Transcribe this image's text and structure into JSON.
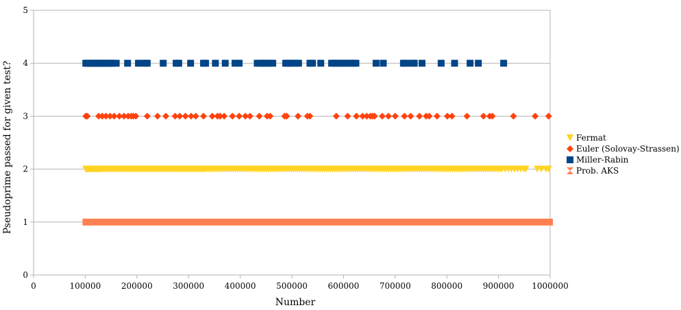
{
  "chart_data": {
    "type": "scatter",
    "title": "",
    "xlabel": "Number",
    "ylabel": "Pseudoprime passed for given test?",
    "xlim": [
      0,
      1000000
    ],
    "ylim": [
      0,
      5
    ],
    "x_ticks": [
      "0",
      "100000",
      "200000",
      "300000",
      "400000",
      "500000",
      "600000",
      "700000",
      "800000",
      "900000",
      "1000000"
    ],
    "y_ticks": [
      "0",
      "1",
      "2",
      "3",
      "4",
      "5"
    ],
    "grid": "horizontal",
    "legend_position": "right",
    "series": [
      {
        "name": "Fermat",
        "marker": "triangle-down",
        "color": "#FFD320",
        "y": 2,
        "x": [
          101101,
          102400,
          104000,
          106000,
          108000,
          110000,
          112000,
          114000,
          116000,
          118000,
          120000,
          122000,
          124000,
          126000,
          128000,
          130000,
          133000,
          136000,
          139000,
          142000,
          145000,
          148000,
          151000,
          154000,
          157000,
          160000,
          163000,
          166000,
          169000,
          172000,
          175000,
          178000,
          181000,
          184000,
          187000,
          190000,
          193000,
          196000,
          199000,
          202000,
          205000,
          208000,
          211000,
          214000,
          217000,
          220000,
          223000,
          226000,
          229000,
          232000,
          235000,
          238000,
          241000,
          244000,
          247000,
          250000,
          253000,
          256000,
          259000,
          262000,
          265000,
          268000,
          271000,
          274000,
          277000,
          280000,
          283000,
          286000,
          289000,
          292000,
          295000,
          298000,
          301000,
          304000,
          307000,
          310000,
          313000,
          316000,
          319000,
          322000,
          325000,
          328000,
          331000,
          335000,
          339000,
          343000,
          347000,
          351000,
          355000,
          359000,
          363000,
          367000,
          371000,
          375000,
          379000,
          383000,
          387000,
          391000,
          395000,
          399000,
          403000,
          407000,
          411000,
          415000,
          419000,
          423000,
          427000,
          431000,
          435000,
          439000,
          443000,
          447000,
          451000,
          455000,
          459000,
          463000,
          467000,
          471000,
          475000,
          479000,
          483000,
          487000,
          491000,
          495000,
          499000,
          503000,
          507000,
          511000,
          515000,
          519000,
          523000,
          527000,
          531000,
          535000,
          539000,
          543000,
          547000,
          551000,
          555000,
          559000,
          563000,
          567000,
          571000,
          575000,
          579000,
          583000,
          587000,
          591000,
          595000,
          599000,
          603000,
          607000,
          611000,
          615000,
          619000,
          623000,
          627000,
          631000,
          635000,
          639000,
          643000,
          647000,
          651000,
          655000,
          659000,
          663000,
          667000,
          671000,
          675000,
          679000,
          683000,
          687000,
          691000,
          695000,
          699000,
          703000,
          707000,
          711000,
          715000,
          719000,
          723000,
          727000,
          731000,
          735000,
          739000,
          743000,
          747000,
          751000,
          755000,
          759000,
          763000,
          767000,
          771000,
          775000,
          779000,
          783000,
          787000,
          791000,
          795000,
          799000,
          803000,
          807000,
          811000,
          815000,
          819000,
          823000,
          827000,
          831000,
          835000,
          839000,
          843000,
          847000,
          851000,
          855000,
          859000,
          863000,
          867000,
          871000,
          875000,
          879000,
          883000,
          887000,
          891000,
          895000,
          899000,
          903000,
          907000,
          913000,
          919000,
          925000,
          931000,
          937000,
          943000,
          949000,
          953000,
          975000,
          983000,
          992000,
          997000
        ]
      },
      {
        "name": "Euler (Solovay-Strassen)",
        "marker": "diamond",
        "color": "#FF420E",
        "y": 3,
        "x": [
          101101,
          104000,
          126000,
          133000,
          140000,
          148000,
          156000,
          166000,
          175000,
          183000,
          189000,
          193000,
          198000,
          220000,
          240000,
          256000,
          274000,
          283000,
          294000,
          305000,
          314000,
          329000,
          346000,
          356000,
          361000,
          369000,
          385000,
          398000,
          410000,
          419000,
          437000,
          452000,
          458000,
          486000,
          490000,
          512000,
          530000,
          535000,
          586000,
          608000,
          625000,
          637000,
          645000,
          652000,
          656000,
          660000,
          675000,
          687000,
          700000,
          718000,
          730000,
          747000,
          760000,
          766000,
          781000,
          801000,
          810000,
          839000,
          871000,
          883000,
          888000,
          929000,
          971000,
          997000
        ]
      },
      {
        "name": "Miller-Rabin",
        "marker": "square",
        "color": "#004586",
        "y": 4,
        "x": [
          101101,
          104000,
          107000,
          110000,
          113000,
          116000,
          119000,
          122000,
          125000,
          128000,
          131000,
          134000,
          137000,
          140000,
          143000,
          146000,
          149000,
          152000,
          160000,
          182000,
          203000,
          214000,
          220000,
          251000,
          276000,
          281000,
          304000,
          329000,
          333000,
          352000,
          371000,
          390000,
          398000,
          433000,
          440000,
          446000,
          452000,
          458000,
          463000,
          488000,
          493000,
          498000,
          506000,
          513000,
          535000,
          540000,
          556000,
          577000,
          582000,
          588000,
          594000,
          600000,
          605000,
          612000,
          619000,
          624000,
          663000,
          677000,
          716000,
          721000,
          733000,
          737000,
          752000,
          789000,
          815000,
          845000,
          861000,
          910000
        ]
      },
      {
        "name": "Prob. AKS",
        "marker": "bowtie",
        "color": "#FF7F50",
        "y": 1,
        "x_range": [
          100000,
          1000000
        ],
        "dense": true
      }
    ]
  }
}
